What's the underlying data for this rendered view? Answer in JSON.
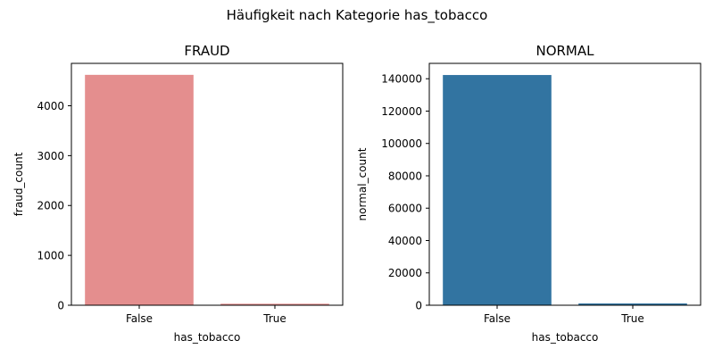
{
  "figure": {
    "title": "Häufigkeit nach Kategorie has_tobacco"
  },
  "chart_data": [
    {
      "type": "bar",
      "title": "FRAUD",
      "xlabel": "has_tobacco",
      "ylabel": "fraud_count",
      "categories": [
        "False",
        "True"
      ],
      "values": [
        4620,
        30
      ],
      "ylim": [
        0,
        4850
      ],
      "yticks": [
        0,
        1000,
        2000,
        3000,
        4000
      ],
      "bar_color": "#e48e8e",
      "grid": false,
      "legend": "none"
    },
    {
      "type": "bar",
      "title": "NORMAL",
      "xlabel": "has_tobacco",
      "ylabel": "normal_count",
      "categories": [
        "False",
        "True"
      ],
      "values": [
        142300,
        1100
      ],
      "ylim": [
        0,
        149500
      ],
      "yticks": [
        0,
        20000,
        40000,
        60000,
        80000,
        100000,
        120000,
        140000
      ],
      "bar_color": "#3274a1",
      "grid": false,
      "legend": "none"
    }
  ]
}
